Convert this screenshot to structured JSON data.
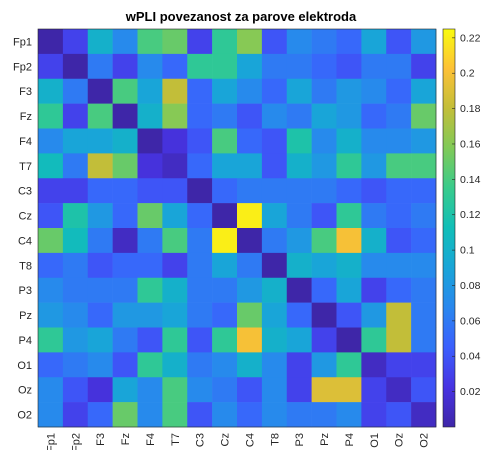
{
  "chart_data": {
    "type": "heatmap",
    "title": "wPLI povezanost za parove elektroda",
    "xlabel": "",
    "ylabel": "",
    "rows": [
      "Fp1",
      "Fp2",
      "F3",
      "Fz",
      "F4",
      "T7",
      "C3",
      "Cz",
      "C4",
      "T8",
      "P3",
      "Pz",
      "P4",
      "O1",
      "Oz",
      "O2"
    ],
    "cols": [
      "Fp1",
      "Fp2",
      "F3",
      "Fz",
      "F4",
      "T7",
      "C3",
      "Cz",
      "C4",
      "T8",
      "P3",
      "Pz",
      "P4",
      "O1",
      "Oz",
      "O2"
    ],
    "colorbar": {
      "min": 0.0,
      "max": 0.225,
      "colormap": "parula",
      "ticks": [
        0.02,
        0.04,
        0.06,
        0.08,
        0.1,
        0.12,
        0.14,
        0.16,
        0.18,
        0.2,
        0.22
      ],
      "tick_labels": [
        "0.02",
        "0.04",
        "0.06",
        "0.08",
        "0.1",
        "0.12",
        "0.14",
        "0.16",
        "0.18",
        "0.2",
        "0.22"
      ]
    },
    "values": [
      [
        0.0,
        0.03,
        0.1,
        0.07,
        0.14,
        0.15,
        0.03,
        0.13,
        0.16,
        0.04,
        0.07,
        0.06,
        0.05,
        0.09,
        0.04,
        0.08
      ],
      [
        0.03,
        0.0,
        0.06,
        0.03,
        0.07,
        0.05,
        0.13,
        0.13,
        0.09,
        0.06,
        0.06,
        0.05,
        0.04,
        0.06,
        0.06,
        0.03
      ],
      [
        0.1,
        0.06,
        0.0,
        0.14,
        0.09,
        0.18,
        0.05,
        0.09,
        0.07,
        0.05,
        0.09,
        0.06,
        0.08,
        0.07,
        0.05,
        0.09
      ],
      [
        0.13,
        0.03,
        0.14,
        0.0,
        0.1,
        0.16,
        0.05,
        0.06,
        0.04,
        0.07,
        0.06,
        0.09,
        0.08,
        0.05,
        0.06,
        0.15
      ],
      [
        0.07,
        0.09,
        0.09,
        0.1,
        0.0,
        0.02,
        0.04,
        0.14,
        0.05,
        0.04,
        0.12,
        0.07,
        0.1,
        0.07,
        0.07,
        0.08
      ],
      [
        0.11,
        0.06,
        0.18,
        0.15,
        0.02,
        0.01,
        0.05,
        0.09,
        0.09,
        0.04,
        0.1,
        0.08,
        0.13,
        0.08,
        0.14,
        0.14
      ],
      [
        0.03,
        0.03,
        0.05,
        0.05,
        0.04,
        0.04,
        0.0,
        0.05,
        0.06,
        0.06,
        0.06,
        0.06,
        0.05,
        0.04,
        0.05,
        0.05
      ],
      [
        0.04,
        0.12,
        0.08,
        0.05,
        0.15,
        0.09,
        0.05,
        0.0,
        0.22,
        0.09,
        0.06,
        0.04,
        0.13,
        0.06,
        0.05,
        0.06
      ],
      [
        0.15,
        0.11,
        0.06,
        0.01,
        0.06,
        0.14,
        0.06,
        0.22,
        0.0,
        0.06,
        0.08,
        0.14,
        0.2,
        0.1,
        0.04,
        0.05
      ],
      [
        0.05,
        0.06,
        0.04,
        0.05,
        0.05,
        0.03,
        0.06,
        0.09,
        0.06,
        0.0,
        0.1,
        0.09,
        0.1,
        0.07,
        0.07,
        0.07
      ],
      [
        0.07,
        0.06,
        0.06,
        0.06,
        0.13,
        0.1,
        0.06,
        0.06,
        0.08,
        0.1,
        0.0,
        0.05,
        0.09,
        0.03,
        0.05,
        0.06
      ],
      [
        0.08,
        0.07,
        0.05,
        0.08,
        0.08,
        0.09,
        0.06,
        0.05,
        0.15,
        0.09,
        0.05,
        0.0,
        0.04,
        0.08,
        0.18,
        0.06
      ],
      [
        0.13,
        0.08,
        0.09,
        0.06,
        0.04,
        0.13,
        0.04,
        0.13,
        0.2,
        0.1,
        0.09,
        0.03,
        0.0,
        0.13,
        0.18,
        0.06
      ],
      [
        0.05,
        0.06,
        0.07,
        0.04,
        0.13,
        0.1,
        0.06,
        0.07,
        0.1,
        0.07,
        0.03,
        0.08,
        0.13,
        0.01,
        0.03,
        0.03
      ],
      [
        0.07,
        0.04,
        0.02,
        0.09,
        0.07,
        0.14,
        0.07,
        0.06,
        0.04,
        0.07,
        0.03,
        0.19,
        0.19,
        0.03,
        0.01,
        0.04
      ],
      [
        0.07,
        0.03,
        0.05,
        0.15,
        0.07,
        0.14,
        0.04,
        0.07,
        0.05,
        0.07,
        0.06,
        0.06,
        0.07,
        0.03,
        0.04,
        0.01
      ]
    ]
  }
}
